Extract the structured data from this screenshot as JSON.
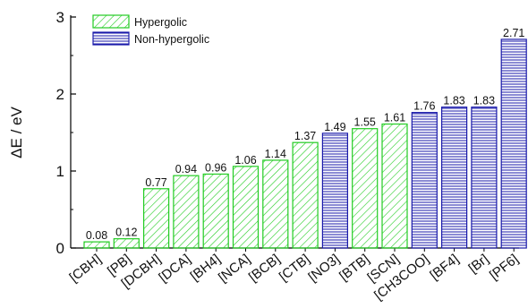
{
  "chart_data": {
    "type": "bar",
    "ylabel": "ΔE / eV",
    "xlabel": "",
    "title": "",
    "ylim": [
      0,
      3
    ],
    "yticks": [
      0,
      1,
      2,
      3
    ],
    "grid": false,
    "legend_position": "top-left",
    "series": [
      {
        "name": "Hypergolic",
        "color": "#22cc22",
        "pattern": "diagonal-hatch"
      },
      {
        "name": "Non-hypergolic",
        "color": "#1a1aaa",
        "pattern": "horizontal-lines"
      }
    ],
    "bars": [
      {
        "category": "[CBH]",
        "value": 0.08,
        "label": "0.08",
        "series": "Hypergolic"
      },
      {
        "category": "[PB]",
        "value": 0.12,
        "label": "0.12",
        "series": "Hypergolic"
      },
      {
        "category": "[DCBH]",
        "value": 0.77,
        "label": "0.77",
        "series": "Hypergolic"
      },
      {
        "category": "[DCA]",
        "value": 0.94,
        "label": "0.94",
        "series": "Hypergolic"
      },
      {
        "category": "[BH4]",
        "value": 0.96,
        "label": "0.96",
        "series": "Hypergolic"
      },
      {
        "category": "[NCA]",
        "value": 1.06,
        "label": "1.06",
        "series": "Hypergolic"
      },
      {
        "category": "[BCB]",
        "value": 1.14,
        "label": "1.14",
        "series": "Hypergolic"
      },
      {
        "category": "[CTB]",
        "value": 1.37,
        "label": "1.37",
        "series": "Hypergolic"
      },
      {
        "category": "[NO3]",
        "value": 1.49,
        "label": "1.49",
        "series": "Non-hypergolic"
      },
      {
        "category": "[BTB]",
        "value": 1.55,
        "label": "1.55",
        "series": "Hypergolic"
      },
      {
        "category": "[SCN]",
        "value": 1.61,
        "label": "1.61",
        "series": "Hypergolic"
      },
      {
        "category": "[CH3COO]",
        "value": 1.76,
        "label": "1.76",
        "series": "Non-hypergolic"
      },
      {
        "category": "[BF4]",
        "value": 1.83,
        "label": "1.83",
        "series": "Non-hypergolic"
      },
      {
        "category": "[Br]",
        "value": 1.83,
        "label": "1.83",
        "series": "Non-hypergolic"
      },
      {
        "category": "[PF6]",
        "value": 2.71,
        "label": "2.71",
        "series": "Non-hypergolic"
      }
    ]
  }
}
